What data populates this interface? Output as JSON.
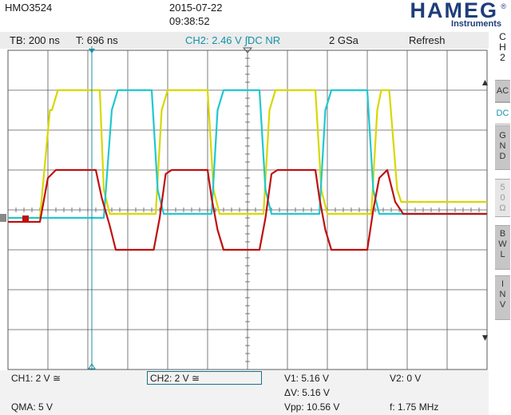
{
  "header": {
    "model": "HMO3524",
    "date": "2015-07-22",
    "time": "09:38:52",
    "brand": "HAMEG",
    "brand_reg": "®",
    "brand_sub": "Instruments"
  },
  "status_bar": {
    "timebase": "TB: 200 ns",
    "trigger_time": "T: 696 ns",
    "trigger": "CH2: 2.46 V",
    "trigger_slope": "∫",
    "coupling": "DC NR",
    "sample_rate": "2 GSa",
    "mode": "Refresh"
  },
  "side_panel": {
    "channel": [
      "C",
      "H",
      "2"
    ],
    "ac": "AC",
    "dc": "DC",
    "gnd": [
      "G",
      "N",
      "D"
    ],
    "ohm50": [
      "5",
      "0",
      "Ω"
    ],
    "bwl": [
      "B",
      "W",
      "L"
    ],
    "inv": [
      "I",
      "N",
      "V"
    ]
  },
  "bottom": {
    "ch1": "CH1: 2 V ≅",
    "ch2": "CH2: 2 V ≅",
    "v1": "V1: 5.16 V",
    "v2": "V2: 0 V",
    "dv": "ΔV: 5.16 V",
    "qma": "QMA: 5 V",
    "vpp": "Vpp: 10.56 V",
    "freq": "f: 1.75 MHz"
  },
  "colors": {
    "ch1_yellow": "#d8d800",
    "ch2_cyan": "#20c8d0",
    "ch3_red": "#c01010",
    "cursor": "#1591a8",
    "grid": "#5a5a5a"
  },
  "icons": {
    "trigger_marker": "triangle-down-icon",
    "cursor_top": "cursor-arrow-icon",
    "cursor_bottom": "cursor-arrow-icon",
    "ground_marker": "ground-marker-icon",
    "scroll_up": "arrow-up-icon",
    "scroll_down": "arrow-down-icon"
  },
  "chart_data": {
    "type": "line",
    "title": "",
    "xlabel": "",
    "ylabel": "",
    "divisions": {
      "x": 12,
      "y": 8
    },
    "xlim": [
      0,
      12
    ],
    "ylim": [
      -4,
      4
    ],
    "grid": true,
    "series": [
      {
        "color": "#d8d800",
        "points": [
          [
            0,
            -0.2
          ],
          [
            0.8,
            -0.2
          ],
          [
            1.05,
            2.5
          ],
          [
            1.1,
            2.5
          ],
          [
            1.25,
            3.0
          ],
          [
            2.3,
            3.0
          ],
          [
            2.4,
            0.5
          ],
          [
            2.55,
            -0.1
          ],
          [
            3.7,
            -0.1
          ],
          [
            3.85,
            2.5
          ],
          [
            4.0,
            3.0
          ],
          [
            5.0,
            3.0
          ],
          [
            5.15,
            0.5
          ],
          [
            5.3,
            -0.1
          ],
          [
            6.4,
            -0.1
          ],
          [
            6.55,
            2.5
          ],
          [
            6.7,
            3.0
          ],
          [
            7.7,
            3.0
          ],
          [
            7.85,
            0.5
          ],
          [
            8.0,
            -0.1
          ],
          [
            9.1,
            -0.1
          ],
          [
            9.25,
            2.5
          ],
          [
            9.35,
            3.0
          ],
          [
            9.55,
            3.0
          ],
          [
            9.75,
            0.5
          ],
          [
            9.85,
            0.2
          ],
          [
            12,
            0.2
          ]
        ]
      },
      {
        "color": "#20c8d0",
        "points": [
          [
            0,
            -0.2
          ],
          [
            2.4,
            -0.2
          ],
          [
            2.6,
            2.5
          ],
          [
            2.75,
            3.0
          ],
          [
            3.6,
            3.0
          ],
          [
            3.75,
            0.5
          ],
          [
            3.9,
            -0.1
          ],
          [
            5.1,
            -0.1
          ],
          [
            5.25,
            2.5
          ],
          [
            5.4,
            3.0
          ],
          [
            6.3,
            3.0
          ],
          [
            6.45,
            0.5
          ],
          [
            6.6,
            -0.1
          ],
          [
            7.8,
            -0.1
          ],
          [
            7.95,
            2.5
          ],
          [
            8.1,
            3.0
          ],
          [
            9.0,
            3.0
          ],
          [
            9.15,
            0.5
          ],
          [
            9.3,
            -0.1
          ],
          [
            12,
            -0.1
          ]
        ]
      },
      {
        "color": "#c01010",
        "points": [
          [
            0,
            -0.3
          ],
          [
            0.8,
            -0.3
          ],
          [
            1.0,
            0.8
          ],
          [
            1.2,
            1.0
          ],
          [
            2.2,
            1.0
          ],
          [
            2.35,
            0.3
          ],
          [
            2.55,
            -0.4
          ],
          [
            2.7,
            -1.0
          ],
          [
            3.1,
            -1.0
          ],
          [
            3.65,
            -1.0
          ],
          [
            3.8,
            -0.2
          ],
          [
            3.95,
            0.9
          ],
          [
            4.1,
            1.0
          ],
          [
            5.0,
            1.0
          ],
          [
            5.1,
            0.3
          ],
          [
            5.25,
            -0.5
          ],
          [
            5.4,
            -1.0
          ],
          [
            6.3,
            -1.0
          ],
          [
            6.45,
            -0.2
          ],
          [
            6.6,
            0.9
          ],
          [
            6.75,
            1.0
          ],
          [
            7.7,
            1.0
          ],
          [
            7.8,
            0.3
          ],
          [
            7.95,
            -0.5
          ],
          [
            8.1,
            -1.0
          ],
          [
            9.0,
            -1.0
          ],
          [
            9.15,
            0.0
          ],
          [
            9.3,
            0.8
          ],
          [
            9.5,
            1.0
          ],
          [
            9.7,
            0.2
          ],
          [
            9.9,
            -0.1
          ],
          [
            12,
            -0.1
          ]
        ]
      }
    ]
  }
}
